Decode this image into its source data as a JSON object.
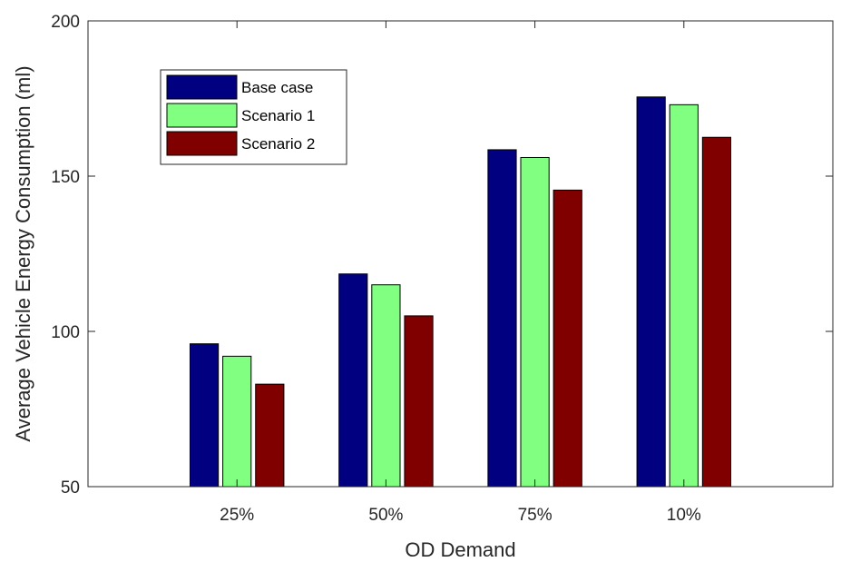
{
  "chart_data": {
    "type": "bar",
    "title": "",
    "xlabel": "OD Demand",
    "ylabel": "Average Vehicle Energy Consumption (ml)",
    "categories": [
      "25%",
      "50%",
      "75%",
      "10%"
    ],
    "series": [
      {
        "name": "Base case",
        "values": [
          96,
          118.5,
          158.5,
          175.5
        ],
        "color": "#000080"
      },
      {
        "name": "Scenario 1",
        "values": [
          92,
          115,
          156,
          173
        ],
        "color": "#80ff80"
      },
      {
        "name": "Scenario 2",
        "values": [
          83,
          105,
          145.5,
          162.5
        ],
        "color": "#800000"
      }
    ],
    "ylim": [
      50,
      200
    ],
    "yticks": [
      50,
      100,
      150,
      200
    ],
    "xlim": [
      0,
      5
    ],
    "grid": false,
    "legend_position": "top-left"
  }
}
